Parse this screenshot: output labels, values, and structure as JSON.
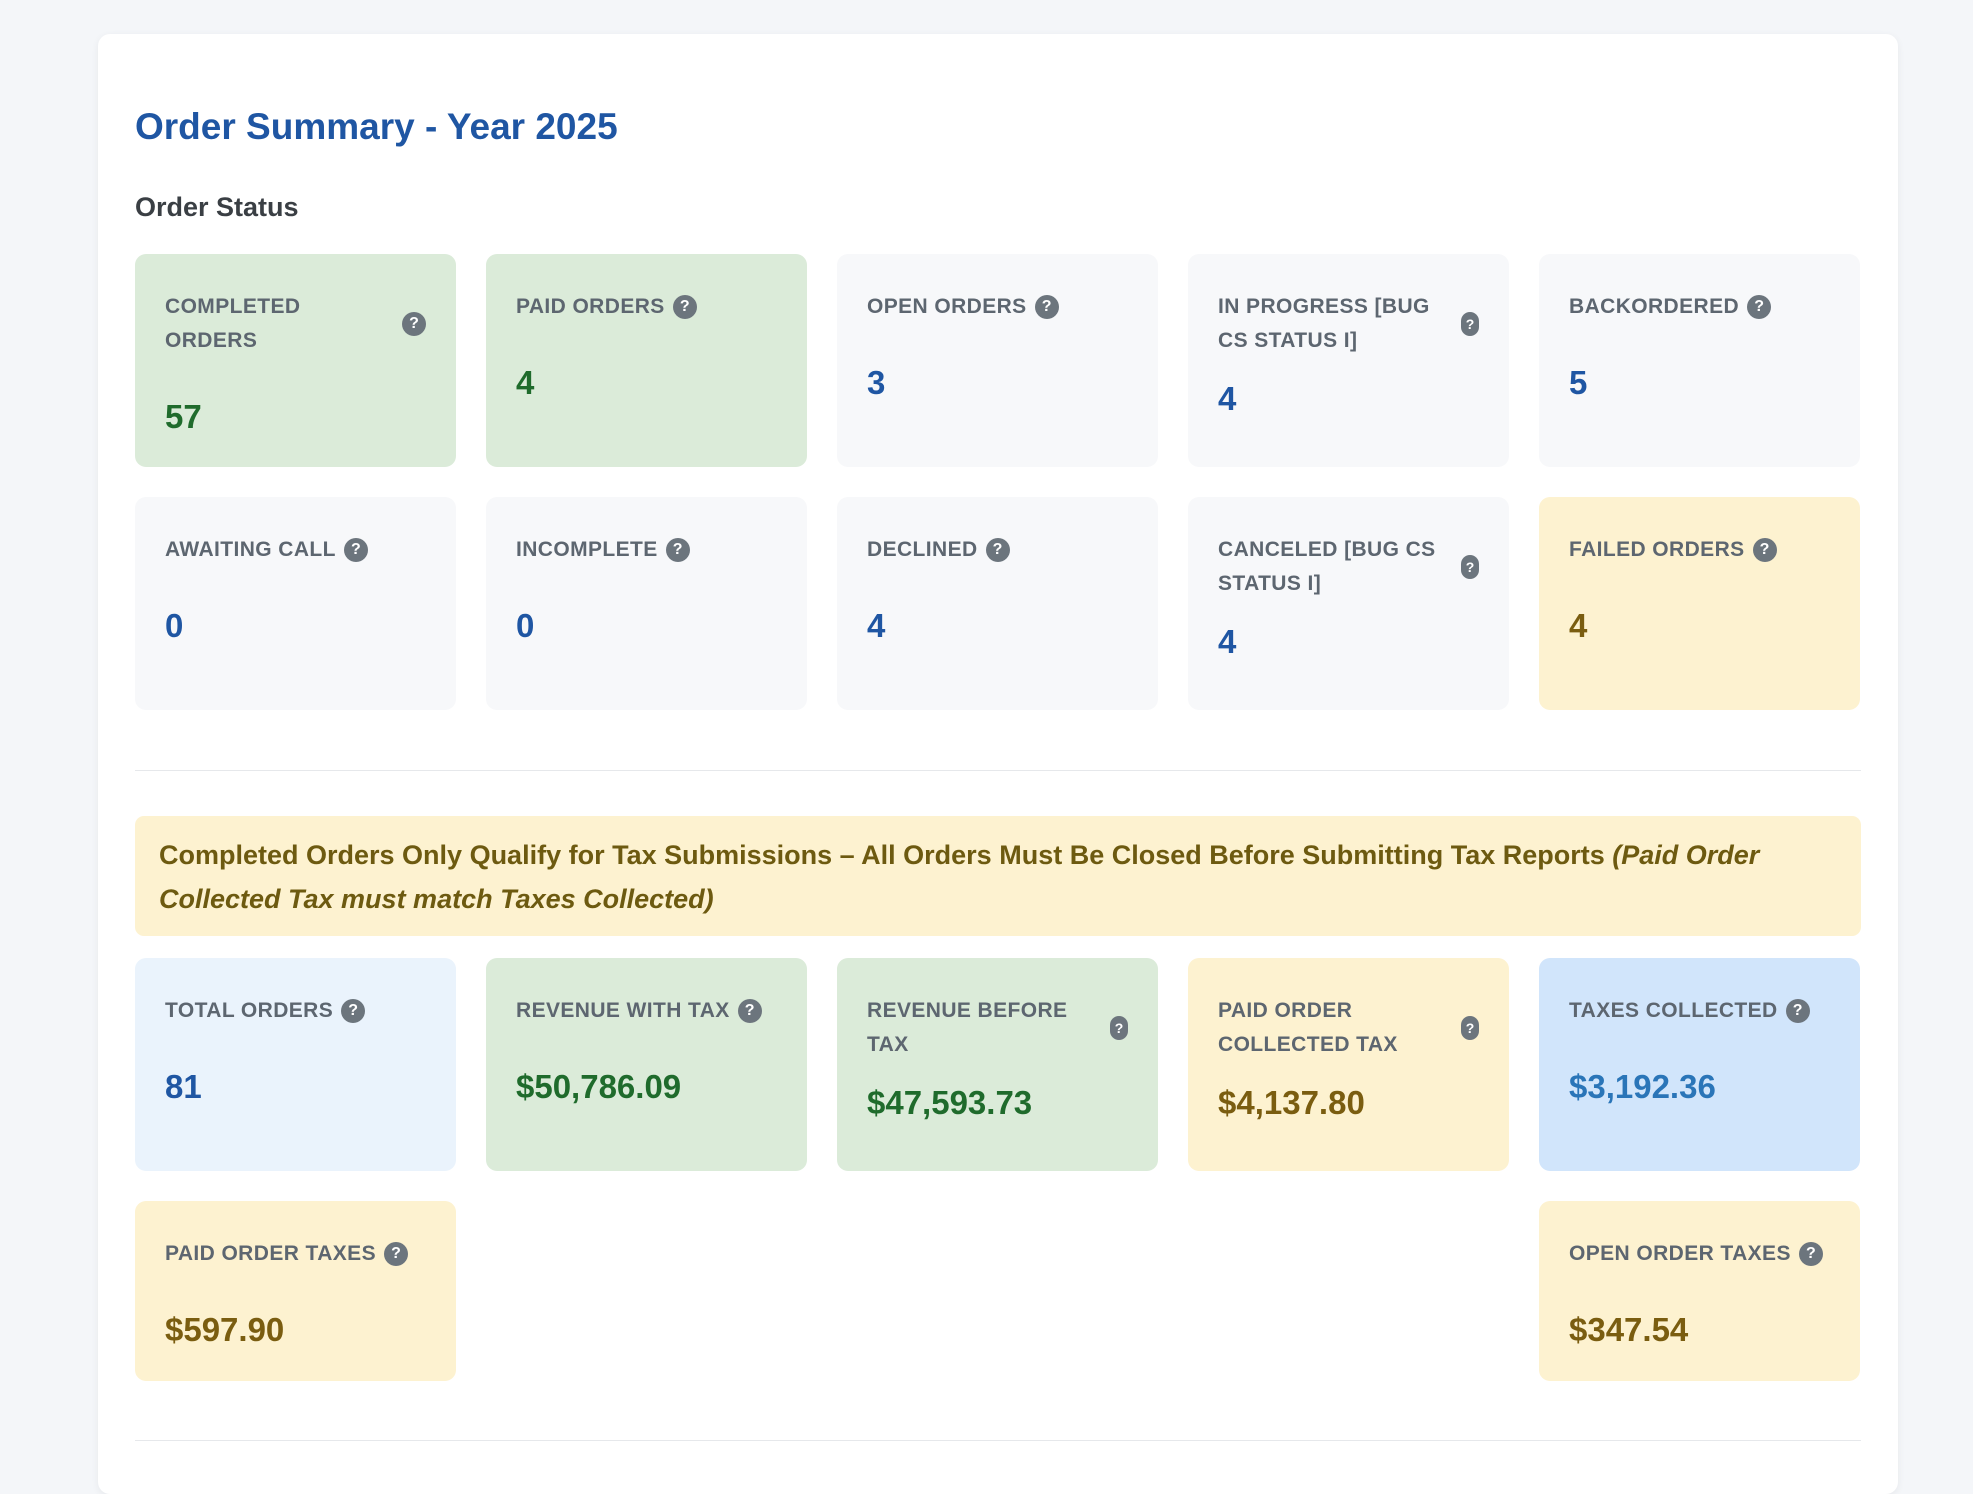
{
  "page": {
    "title": "Order Summary - Year 2025",
    "section_title": "Order Status"
  },
  "status_cards": [
    {
      "label": "COMPLETED ORDERS",
      "value": "57",
      "color": "green"
    },
    {
      "label": "PAID ORDERS",
      "value": "4",
      "color": "green"
    },
    {
      "label": "OPEN ORDERS",
      "value": "3",
      "color": "grey"
    },
    {
      "label": "IN PROGRESS [BUG CS STATUS I]",
      "value": "4",
      "color": "grey"
    },
    {
      "label": "BACKORDERED",
      "value": "5",
      "color": "grey"
    },
    {
      "label": "AWAITING CALL",
      "value": "0",
      "color": "grey"
    },
    {
      "label": "INCOMPLETE",
      "value": "0",
      "color": "grey"
    },
    {
      "label": "DECLINED",
      "value": "4",
      "color": "grey"
    },
    {
      "label": "CANCELED [BUG CS STATUS I]",
      "value": "4",
      "color": "grey"
    },
    {
      "label": "FAILED ORDERS",
      "value": "4",
      "color": "yellow"
    }
  ],
  "notice": {
    "text": "Completed Orders Only Qualify for Tax Submissions – All Orders Must Be Closed Before Submitting Tax Reports ",
    "italic": "(Paid Order Collected Tax must match Taxes Collected)"
  },
  "total_cards": [
    {
      "label": "TOTAL ORDERS",
      "value": "81",
      "color": "lightblue"
    },
    {
      "label": "REVENUE WITH TAX",
      "value": "$50,786.09",
      "color": "green"
    },
    {
      "label": "REVENUE BEFORE TAX",
      "value": "$47,593.73",
      "color": "green"
    },
    {
      "label": "PAID ORDER COLLECTED TAX",
      "value": "$4,137.80",
      "color": "yellow"
    },
    {
      "label": "TAXES COLLECTED",
      "value": "$3,192.36",
      "color": "blue"
    }
  ],
  "tax_cards": [
    {
      "label": "PAID ORDER TAXES",
      "value": "$597.90",
      "color": "yellow"
    },
    {
      "label": "OPEN ORDER TAXES",
      "value": "$347.54",
      "color": "yellow"
    }
  ],
  "icons": {
    "help": "help-icon",
    "help_glyph": "?"
  },
  "colors": {
    "title": "#1f56a3",
    "green_card": "#dbebd9",
    "yellow_card": "#fdf2d0",
    "grey_card": "#f7f8fa",
    "lightblue_card": "#eaf3fc",
    "blue_card": "#d1e5fb"
  }
}
